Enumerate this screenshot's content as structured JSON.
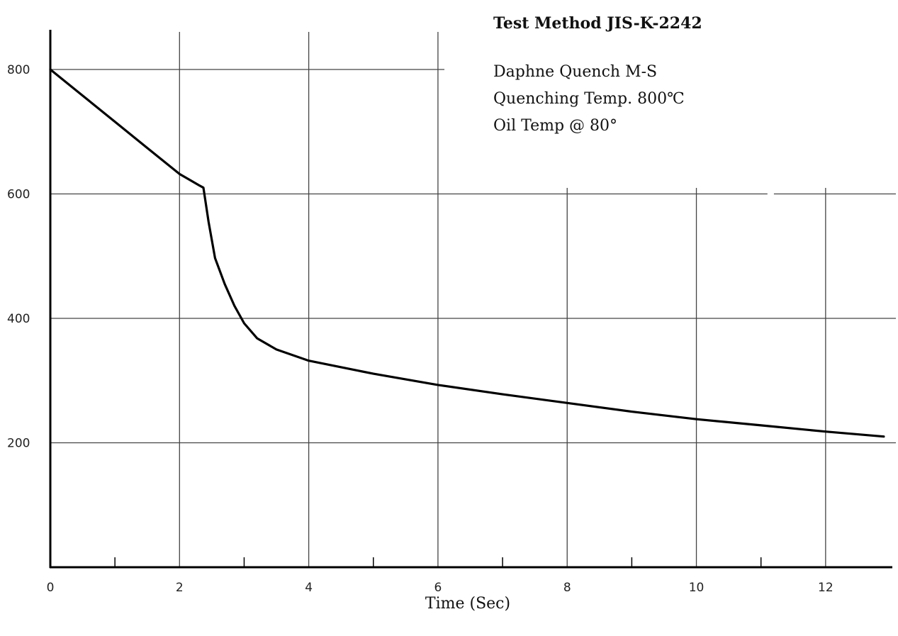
{
  "chart_data": {
    "type": "line",
    "title": "Test Method JIS-K-2242",
    "annotations": [
      "Daphne Quench M-S",
      "Quenching Temp. 800℃",
      "Oil Temp @ 80°"
    ],
    "xlabel": "Time (Sec)",
    "ylabel": "",
    "xlim": [
      0,
      13
    ],
    "ylim": [
      0,
      800
    ],
    "x_ticks": [
      0,
      2,
      4,
      6,
      8,
      10,
      12
    ],
    "x_tick_labels": [
      "0",
      "2",
      "4",
      "6",
      "8",
      "10",
      "12"
    ],
    "x_minor_ticks": [
      1,
      3,
      5,
      7,
      9,
      11
    ],
    "y_ticks": [
      200,
      400,
      600,
      800
    ],
    "y_tick_labels": [
      "200",
      "400",
      "600",
      "800"
    ],
    "grid": true,
    "series": [
      {
        "x": [
          0,
          0.5,
          1,
          1.5,
          2,
          2.3,
          2.37,
          2.45,
          2.55,
          2.7,
          2.85,
          3.0,
          3.2,
          3.5,
          4,
          5,
          6,
          7,
          8,
          9,
          10,
          11,
          12,
          12.9
        ],
        "y": [
          800,
          758,
          716,
          674,
          632,
          614,
          610,
          555,
          497,
          455,
          420,
          392,
          368,
          350,
          332,
          311,
          293,
          278,
          264,
          250,
          238,
          228,
          218,
          210
        ]
      }
    ],
    "colors": {
      "line": "#000000",
      "grid": "#444444",
      "axis": "#000000"
    }
  }
}
